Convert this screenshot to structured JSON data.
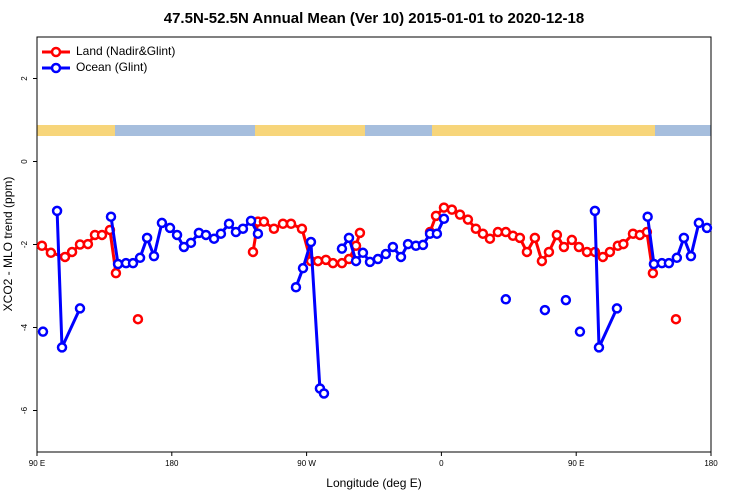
{
  "chart_data": {
    "type": "line",
    "title": "47.5N-52.5N Annual Mean (Ver 10)   2015-01-01 to 2020-12-18",
    "x_label": "Longitude (deg E)",
    "y_label": "XCO2 - MLO trend (ppm)",
    "xlim": [
      90,
      540
    ],
    "xticks": [
      {
        "value": 90,
        "label": "90 E"
      },
      {
        "value": 180,
        "label": "180"
      },
      {
        "value": 270,
        "label": "90 W"
      },
      {
        "value": 360,
        "label": "0"
      },
      {
        "value": 450,
        "label": "90 E"
      },
      {
        "value": 540,
        "label": "180"
      }
    ],
    "ylim": [
      -7,
      3
    ],
    "yticks": [
      -6,
      -4,
      -2,
      0,
      2
    ],
    "legend": "top-left",
    "series": [
      {
        "name": "Land (Nadir&Glint)",
        "color": "#ff0000",
        "x": [
          93.3,
          99.3,
          108.7,
          113.4,
          118.7,
          124.0,
          128.7,
          133.4,
          138.7,
          142.7,
          null,
          157.4,
          null,
          234.2,
          237.5,
          241.5,
          248.2,
          254.2,
          259.6,
          266.9,
          272.9,
          277.6,
          282.9,
          287.6,
          293.6,
          298.3,
          303.0,
          305.6,
          null,
          352.4,
          356.4,
          361.7,
          367.0,
          372.4,
          377.7,
          383.0,
          387.7,
          392.4,
          397.7,
          403.0,
          407.8,
          412.4,
          417.1,
          422.4,
          427.1,
          431.8,
          437.1,
          441.8,
          447.1,
          451.8,
          457.2,
          462.5,
          467.8,
          472.5,
          477.8,
          481.5,
          487.9,
          492.5,
          497.2,
          501.2,
          null,
          516.6
        ],
        "values": [
          -2.03,
          -2.2,
          -2.3,
          -2.18,
          -2.0,
          -1.99,
          -1.77,
          -1.77,
          -1.65,
          -2.69,
          null,
          -3.8,
          null,
          -2.18,
          -1.45,
          -1.45,
          -1.62,
          -1.5,
          -1.5,
          -1.62,
          -2.4,
          -2.4,
          -2.37,
          -2.45,
          -2.45,
          -2.35,
          -2.03,
          -1.72,
          null,
          -1.7,
          -1.31,
          -1.11,
          -1.16,
          -1.28,
          -1.4,
          -1.62,
          -1.74,
          -1.86,
          -1.7,
          -1.7,
          -1.79,
          -1.84,
          -2.18,
          -1.84,
          -2.4,
          -2.18,
          -1.77,
          -2.06,
          -1.89,
          -2.06,
          -2.18,
          -2.18,
          -2.3,
          -2.18,
          -2.03,
          -1.99,
          -1.74,
          -1.77,
          -1.7,
          -2.69,
          null,
          -3.8
        ]
      },
      {
        "name": "Ocean (Glint)",
        "color": "#0000ff",
        "x": [
          94.0,
          null,
          103.4,
          106.7,
          118.7,
          null,
          139.4,
          144.1,
          149.4,
          154.1,
          158.8,
          163.5,
          168.1,
          173.4,
          178.8,
          183.5,
          188.1,
          192.8,
          198.1,
          202.8,
          208.2,
          212.8,
          218.2,
          222.8,
          227.5,
          232.9,
          237.5,
          null,
          262.9,
          267.6,
          272.9,
          278.9,
          281.6,
          null,
          293.6,
          298.3,
          303.0,
          307.6,
          312.3,
          317.6,
          322.9,
          327.6,
          333.0,
          337.7,
          343.0,
          347.7,
          352.4,
          357.0,
          361.7,
          null,
          403.0,
          null,
          429.1,
          null,
          443.1,
          null,
          452.5,
          null,
          462.5,
          465.2,
          477.2,
          null,
          497.7,
          501.9,
          507.2,
          511.9,
          517.2,
          521.9,
          526.6,
          531.9,
          537.3
        ],
        "values": [
          -4.1,
          null,
          -1.19,
          -4.48,
          -3.54,
          null,
          -1.33,
          -2.47,
          -2.45,
          -2.45,
          -2.32,
          -1.84,
          -2.28,
          -1.48,
          -1.6,
          -1.77,
          -2.06,
          -1.96,
          -1.72,
          -1.77,
          -1.86,
          -1.74,
          -1.5,
          -1.7,
          -1.62,
          -1.43,
          -1.74,
          null,
          -3.03,
          -2.57,
          -1.94,
          -5.47,
          -5.59,
          null,
          -2.1,
          -1.84,
          -2.4,
          -2.2,
          -2.42,
          -2.35,
          -2.23,
          -2.06,
          -2.3,
          -1.99,
          -2.03,
          -2.01,
          -1.74,
          -1.74,
          -1.38,
          null,
          -3.32,
          null,
          -3.58,
          null,
          -3.34,
          null,
          -4.1,
          null,
          -1.19,
          -4.48,
          -3.54,
          null,
          -1.33,
          -2.47,
          -2.45,
          -2.45,
          -2.32,
          -1.84,
          -2.28,
          -1.48,
          -1.6
        ]
      }
    ]
  }
}
